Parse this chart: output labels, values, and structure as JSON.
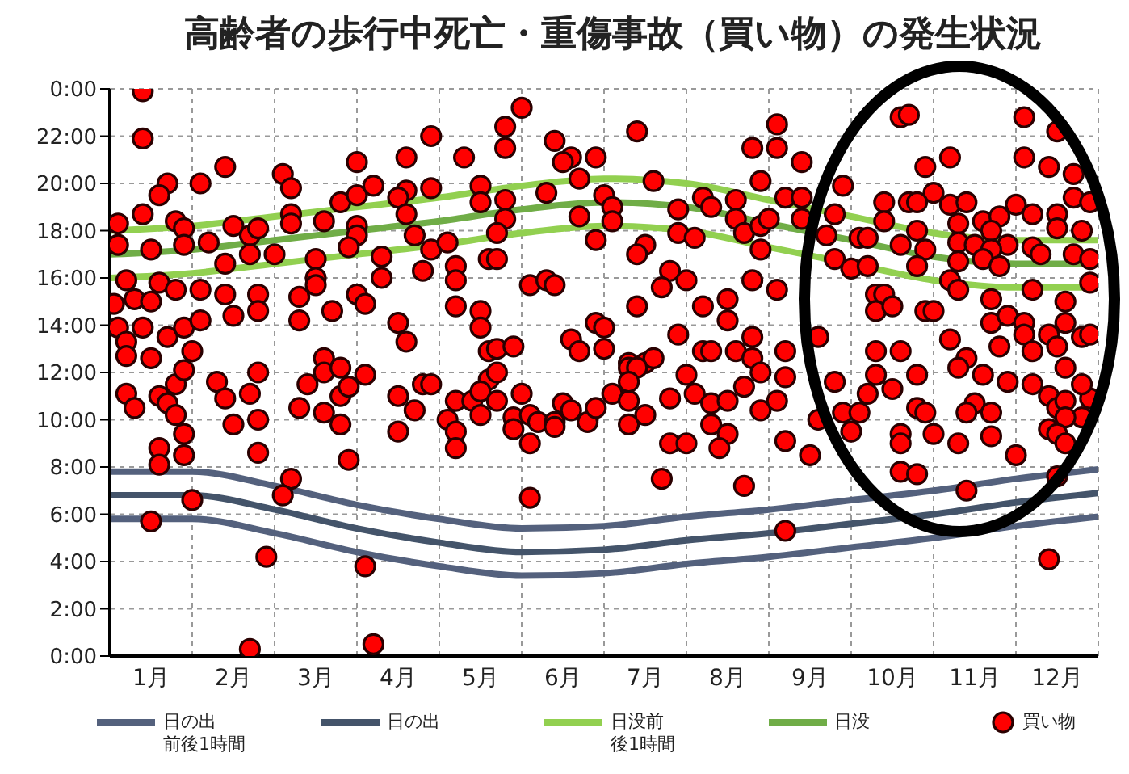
{
  "chart_data": {
    "type": "scatter",
    "title": "高齢者の歩行中死亡・重傷事故（買い物）の発生状況",
    "x": [
      0,
      1,
      2,
      3,
      4,
      5,
      6,
      7,
      8,
      9,
      10,
      11,
      12
    ],
    "xlim": [
      0,
      12
    ],
    "xticks": [
      {
        "value": 0,
        "label": null
      },
      {
        "value": 0.5,
        "label": "1月"
      },
      {
        "value": 1,
        "label": null
      },
      {
        "value": 1.5,
        "label": "2月"
      },
      {
        "value": 2,
        "label": null
      },
      {
        "value": 2.5,
        "label": "3月"
      },
      {
        "value": 3,
        "label": null
      },
      {
        "value": 3.5,
        "label": "4月"
      },
      {
        "value": 4,
        "label": null
      },
      {
        "value": 4.5,
        "label": "5月"
      },
      {
        "value": 5,
        "label": null
      },
      {
        "value": 5.5,
        "label": "6月"
      },
      {
        "value": 6,
        "label": null
      },
      {
        "value": 6.5,
        "label": "7月"
      },
      {
        "value": 7,
        "label": null
      },
      {
        "value": 7.5,
        "label": "8月"
      },
      {
        "value": 8,
        "label": null
      },
      {
        "value": 8.5,
        "label": "9月"
      },
      {
        "value": 9,
        "label": null
      },
      {
        "value": 9.5,
        "label": "10月"
      },
      {
        "value": 10,
        "label": null
      },
      {
        "value": 10.5,
        "label": "11月"
      },
      {
        "value": 11,
        "label": null
      },
      {
        "value": 11.5,
        "label": "12月"
      },
      {
        "value": 12,
        "label": null
      }
    ],
    "ylim": [
      0,
      24
    ],
    "yticks": [
      {
        "value": 0,
        "label": "0:00"
      },
      {
        "value": 2,
        "label": "2:00"
      },
      {
        "value": 4,
        "label": "4:00"
      },
      {
        "value": 6,
        "label": "6:00"
      },
      {
        "value": 8,
        "label": "8:00"
      },
      {
        "value": 10,
        "label": "10:00"
      },
      {
        "value": 12,
        "label": "12:00"
      },
      {
        "value": 14,
        "label": "14:00"
      },
      {
        "value": 16,
        "label": "16:00"
      },
      {
        "value": 18,
        "label": "18:00"
      },
      {
        "value": 20,
        "label": "20:00"
      },
      {
        "value": 22,
        "label": "22:00"
      },
      {
        "value": 24,
        "label": "0:00"
      }
    ],
    "grid": true,
    "legend": "bottom",
    "line_style": "solid",
    "series": [
      {
        "type": "line",
        "name": "日の出前後1時間",
        "color": "#54617d",
        "marker": "none",
        "values": [
          7.8,
          7.8,
          7.2,
          6.4,
          5.8,
          5.4,
          5.5,
          5.9,
          6.2,
          6.6,
          7.0,
          7.5,
          7.9
        ]
      },
      {
        "type": "line",
        "color": "#54617d",
        "marker": "none",
        "values": [
          5.8,
          5.8,
          5.2,
          4.4,
          3.8,
          3.4,
          3.5,
          3.9,
          4.2,
          4.6,
          5.0,
          5.5,
          5.9
        ]
      },
      {
        "type": "line",
        "name": "日の出",
        "color": "#44546a",
        "marker": "none",
        "values": [
          6.8,
          6.8,
          6.2,
          5.4,
          4.8,
          4.4,
          4.5,
          4.9,
          5.2,
          5.6,
          6.0,
          6.5,
          6.9
        ]
      },
      {
        "type": "line",
        "name": "日没前後1時間",
        "color": "#92d050",
        "marker": "none",
        "values": [
          18.0,
          18.2,
          18.6,
          19.0,
          19.4,
          19.9,
          20.2,
          20.0,
          19.3,
          18.6,
          17.9,
          17.6,
          17.6
        ]
      },
      {
        "type": "line",
        "color": "#92d050",
        "marker": "none",
        "values": [
          16.0,
          16.2,
          16.6,
          17.0,
          17.4,
          17.9,
          18.2,
          18.0,
          17.3,
          16.6,
          15.9,
          15.6,
          15.6
        ]
      },
      {
        "type": "line",
        "name": "日没",
        "color": "#70ad47",
        "marker": "none",
        "values": [
          17.0,
          17.2,
          17.6,
          18.0,
          18.4,
          18.9,
          19.2,
          19.0,
          18.3,
          17.6,
          16.9,
          16.6,
          16.6
        ]
      },
      {
        "name": "買い物",
        "color": "#ff0000",
        "marker": "circle",
        "x": [
          0.4,
          0.4,
          1.4,
          0.7,
          1.1,
          0.6,
          0.1,
          0.4,
          0.1,
          0.5,
          0.8,
          0.9,
          0.9,
          1.5,
          1.7,
          1.8,
          2.0,
          1.7,
          1.4,
          1.2,
          0.2,
          0.6,
          0.8,
          0.05,
          0.3,
          0.5,
          1.1,
          1.4,
          1.5,
          1.8,
          1.8,
          0.1,
          0.4,
          0.7,
          0.9,
          1.1,
          0.2,
          0.2,
          0.5,
          1.0,
          2.1,
          2.2,
          2.2,
          2.2,
          2.6,
          2.8,
          3.0,
          3.0,
          3.2,
          3.0,
          3.0,
          2.5,
          2.9,
          3.3,
          2.5,
          2.5,
          2.3,
          2.3,
          2.7,
          3.0,
          3.1,
          3.3,
          3.6,
          3.6,
          3.5,
          3.6,
          3.7,
          3.9,
          3.8,
          3.9,
          3.5,
          3.6,
          2.6,
          0.2,
          0.3,
          0.6,
          0.7,
          0.8,
          0.8,
          0.9,
          0.6,
          0.6,
          0.9,
          0.9,
          1.3,
          1.4,
          1.7,
          1.5,
          1.8,
          1.8,
          1.8,
          1.0,
          0.5,
          2.2,
          2.1,
          1.9,
          1.7,
          2.4,
          2.6,
          2.3,
          2.6,
          2.8,
          2.9,
          2.8,
          2.9,
          3.1,
          2.8,
          3.1,
          3.2,
          3.5,
          3.5,
          3.7,
          3.8,
          3.9,
          5.0,
          4.8,
          4.8,
          4.3,
          5.4,
          5.6,
          5.5,
          5.9,
          5.7,
          6.4,
          7.8,
          3.9,
          4.5,
          4.5,
          4.8,
          4.8,
          4.7,
          5.3,
          5.7,
          6.0,
          6.1,
          6.1,
          5.9,
          6.6,
          6.5,
          6.4,
          6.9,
          6.9,
          7.1,
          7.2,
          7.3,
          7.6,
          7.6,
          7.7,
          7.9,
          7.9,
          7.9,
          4.1,
          4.2,
          4.2,
          4.6,
          4.7,
          5.1,
          5.3,
          5.4,
          4.2,
          4.5,
          4.5,
          6.4,
          6.8,
          6.7,
          7.0,
          7.2,
          7.5,
          7.5,
          7.8,
          5.9,
          6.0,
          6.9,
          4.6,
          4.7,
          4.9,
          5.6,
          5.7,
          6.0,
          6.3,
          6.5,
          6.6,
          7.2,
          7.3,
          7.6,
          7.8,
          7.8,
          4.2,
          4.4,
          4.5,
          4.1,
          4.2,
          4.2,
          4.6,
          4.5,
          4.7,
          4.7,
          5.0,
          4.9,
          4.9,
          5.1,
          5.2,
          5.1,
          5.4,
          5.4,
          5.5,
          5.6,
          5.1,
          5.8,
          5.9,
          6.1,
          6.3,
          6.3,
          6.5,
          6.3,
          6.4,
          6.3,
          6.8,
          6.7,
          6.8,
          7.0,
          7.0,
          7.1,
          7.3,
          7.3,
          7.5,
          7.4,
          7.5,
          7.7,
          7.7,
          7.9,
          7.9,
          8.1,
          8.1,
          8.4,
          9.6,
          9.7,
          11.1,
          11.5,
          10.2,
          9.9,
          11.1,
          11.4,
          11.7,
          8.9,
          8.2,
          8.4,
          8.0,
          8.4,
          8.8,
          8.7,
          9.4,
          9.7,
          10.0,
          9.8,
          10.2,
          10.4,
          11.0,
          11.2,
          11.5,
          11.7,
          11.9,
          9.4,
          9.8,
          10.3,
          10.6,
          10.8,
          11.5,
          11.8,
          9.1,
          9.2,
          9.6,
          9.9,
          10.3,
          10.5,
          10.7,
          10.9,
          10.7,
          11.2,
          11.3,
          11.7,
          11.9,
          8.8,
          9.0,
          9.2,
          9.8,
          10.3,
          10.6,
          10.8,
          10.2,
          10.3,
          10.7,
          11.2,
          11.6,
          11.9,
          8.1,
          9.3,
          9.4,
          9.3,
          9.5,
          9.9,
          10.0,
          10.7,
          10.9,
          11.1,
          11.6,
          11.1,
          11.4,
          11.8,
          11.9,
          10.2,
          10.8,
          11.2,
          11.5,
          9.3,
          9.6,
          8.2,
          8.6,
          10.4,
          8.2,
          8.1,
          8.8,
          8.6,
          8.9,
          9.1,
          9.0,
          8.2,
          8.5,
          9.2,
          9.5,
          9.3,
          9.6,
          9.6,
          9.8,
          9.9,
          10.0,
          9.6,
          9.8,
          9.8,
          10.3,
          10.6,
          10.9,
          10.5,
          10.4,
          10.7,
          10.7,
          10.3,
          11.2,
          11.4,
          11.5,
          11.6,
          11.8,
          11.6,
          11.4,
          11.5,
          11.6,
          11.9,
          11.0,
          11.5,
          10.4,
          8.2,
          11.4,
          11.6,
          11.8
        ],
        "values": [
          23.9,
          21.9,
          20.7,
          20.0,
          20.0,
          19.5,
          18.3,
          18.7,
          17.4,
          17.2,
          18.4,
          18.1,
          17.4,
          18.2,
          17.8,
          18.1,
          17.0,
          17.0,
          16.6,
          17.5,
          15.9,
          15.8,
          15.5,
          14.9,
          15.1,
          15.0,
          15.5,
          15.3,
          14.4,
          15.3,
          14.6,
          13.9,
          13.9,
          13.5,
          13.9,
          14.2,
          13.3,
          12.7,
          12.6,
          12.9,
          20.4,
          19.8,
          18.7,
          18.3,
          18.4,
          19.2,
          19.5,
          20.9,
          19.9,
          18.2,
          17.8,
          16.8,
          17.3,
          16.9,
          16.0,
          15.7,
          15.2,
          14.2,
          14.6,
          15.3,
          14.9,
          16.0,
          21.1,
          19.7,
          19.4,
          18.7,
          17.8,
          17.2,
          16.3,
          22.0,
          14.1,
          13.3,
          12.6,
          11.1,
          10.5,
          11.0,
          10.7,
          11.5,
          10.2,
          9.4,
          8.8,
          8.1,
          8.5,
          12.1,
          11.6,
          10.9,
          11.1,
          9.8,
          10.0,
          8.6,
          12.0,
          6.6,
          5.7,
          7.5,
          6.8,
          4.2,
          0.3,
          11.5,
          12.0,
          10.5,
          10.3,
          11.0,
          11.4,
          9.8,
          8.3,
          11.9,
          12.2,
          3.8,
          0.5,
          11.0,
          9.5,
          10.4,
          11.5,
          11.5,
          23.2,
          22.4,
          21.5,
          21.1,
          21.8,
          21.1,
          20.9,
          21.1,
          20.2,
          22.2,
          21.5,
          19.8,
          19.9,
          19.2,
          19.3,
          18.5,
          17.9,
          19.6,
          18.6,
          19.5,
          19.0,
          18.4,
          17.6,
          20.1,
          17.4,
          17.0,
          18.9,
          17.9,
          17.7,
          19.4,
          19.0,
          19.3,
          18.5,
          17.9,
          18.2,
          20.1,
          17.2,
          17.5,
          16.5,
          15.9,
          16.8,
          16.8,
          15.7,
          15.9,
          15.7,
          14.8,
          14.6,
          13.9,
          14.8,
          16.3,
          15.6,
          15.9,
          14.8,
          15.1,
          14.2,
          15.9,
          14.1,
          13.9,
          13.6,
          12.9,
          13.0,
          13.1,
          13.4,
          12.9,
          13.0,
          12.4,
          12.4,
          12.6,
          12.9,
          12.9,
          12.9,
          13.5,
          12.6,
          10.8,
          10.8,
          10.2,
          10.0,
          9.5,
          8.8,
          11.7,
          11.2,
          12.0,
          10.8,
          11.1,
          10.1,
          9.6,
          10.2,
          9.9,
          9.0,
          9.9,
          9.7,
          10.7,
          10.4,
          6.7,
          9.9,
          10.5,
          11.1,
          9.8,
          10.8,
          10.2,
          12.2,
          12.2,
          11.6,
          9.0,
          7.5,
          10.9,
          9.0,
          11.9,
          11.1,
          10.7,
          9.8,
          9.4,
          8.8,
          10.8,
          7.2,
          11.4,
          10.4,
          12.0,
          22.5,
          21.5,
          20.9,
          22.8,
          22.9,
          22.8,
          22.2,
          21.1,
          20.7,
          21.1,
          20.7,
          20.4,
          19.9,
          19.4,
          19.4,
          18.5,
          18.5,
          18.7,
          17.8,
          19.2,
          19.2,
          19.6,
          19.2,
          19.1,
          19.2,
          19.1,
          18.7,
          18.7,
          19.4,
          19.2,
          18.4,
          18.0,
          18.3,
          18.4,
          18.6,
          18.1,
          18.0,
          17.7,
          17.7,
          17.4,
          17.2,
          17.5,
          17.4,
          18.0,
          17.4,
          17.2,
          17.3,
          17.0,
          17.0,
          16.8,
          16.8,
          16.4,
          16.5,
          16.5,
          16.7,
          16.8,
          16.5,
          15.9,
          15.5,
          15.1,
          15.5,
          15.0,
          15.8,
          15.5,
          15.3,
          15.3,
          14.6,
          14.8,
          14.6,
          14.6,
          14.1,
          14.4,
          14.1,
          14.1,
          13.6,
          13.6,
          13.5,
          13.6,
          13.4,
          13.1,
          12.9,
          13.1,
          12.9,
          12.9,
          12.9,
          13.5,
          12.6,
          11.8,
          10.8,
          11.6,
          10.0,
          10.3,
          10.3,
          9.5,
          9.1,
          8.5,
          11.1,
          11.3,
          11.9,
          9.4,
          9.0,
          10.5,
          10.3,
          9.4,
          7.8,
          7.7,
          11.9,
          12.2,
          11.9,
          11.6,
          10.7,
          10.3,
          10.3,
          9.3,
          9.0,
          11.5,
          11.0,
          10.5,
          10.8,
          10.1,
          10.1,
          9.6,
          9.4,
          9.0,
          10.9,
          8.5,
          7.6,
          7.0,
          5.3,
          4.1,
          12.2,
          11.5
        ]
      }
    ]
  }
}
